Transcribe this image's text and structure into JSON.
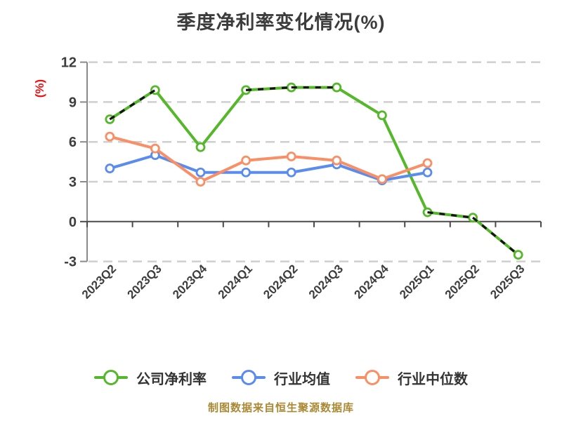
{
  "title": {
    "text": "季度净利率变化情况(%)",
    "color": "#3c3c3c"
  },
  "caption": {
    "text": "制图数据来自恒生聚源数据库",
    "color": "#aa8833"
  },
  "chart_data": {
    "type": "line",
    "title": "季度净利率变化情况(%)",
    "xlabel": "",
    "ylabel": "(%)",
    "ylabel_color": "#ee1111",
    "ylim": [
      -3,
      12
    ],
    "yticks": [
      -3,
      0,
      3,
      6,
      9,
      12
    ],
    "grid": "horizontal-dashed",
    "legend_position": "bottom",
    "categories": [
      "2023Q2",
      "2023Q3",
      "2023Q4",
      "2024Q1",
      "2024Q2",
      "2024Q3",
      "2024Q4",
      "2025Q1",
      "2025Q2",
      "2025Q3"
    ],
    "series": [
      {
        "name": "公司净利率",
        "color": "#54b82a",
        "marker": "circle-white-fill",
        "values": [
          7.7,
          9.9,
          5.6,
          9.9,
          10.1,
          10.1,
          8.0,
          0.7,
          0.3,
          -2.5
        ],
        "overlay": {
          "color": "#141414",
          "style": "dashed",
          "segments": [
            [
              0,
              1
            ],
            [
              3,
              4
            ],
            [
              4,
              5
            ],
            [
              7,
              8
            ],
            [
              8,
              9
            ]
          ]
        }
      },
      {
        "name": "行业均值",
        "color": "#5a8cf0",
        "marker": "circle-white-fill",
        "values": [
          4.0,
          5.0,
          3.7,
          3.7,
          3.7,
          4.3,
          3.1,
          3.7
        ]
      },
      {
        "name": "行业中位数",
        "color": "#fa8e64",
        "marker": "circle-white-fill",
        "values": [
          6.4,
          5.5,
          3.0,
          4.6,
          4.9,
          4.6,
          3.2,
          4.4
        ]
      }
    ],
    "axis": {
      "zero_line_color": "#4a4a4a",
      "spine_color": "#8a8a8a",
      "grid_color": "#cfcfcf",
      "tick_label_color": "#3d3d3d"
    }
  }
}
